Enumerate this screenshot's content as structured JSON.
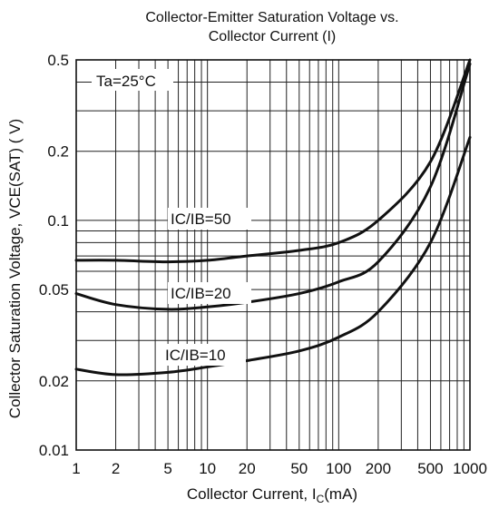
{
  "chart_data": {
    "type": "line",
    "title": "Collector-Emitter Saturation Voltage vs.",
    "subtitle": "Collector Current (I)",
    "xlabel": {
      "text": "Collector Current, I",
      "sub": "C",
      "unit": "(mA)"
    },
    "ylabel": "Collector  Saturation Voltage, VCE(SAT) ( V)",
    "xscale": "log",
    "yscale": "log",
    "xlim": [
      1,
      1000
    ],
    "ylim": [
      0.01,
      0.5
    ],
    "x_ticks": [
      {
        "value": 1,
        "label": "1"
      },
      {
        "value": 2,
        "label": "2"
      },
      {
        "value": 5,
        "label": "5"
      },
      {
        "value": 10,
        "label": "10"
      },
      {
        "value": 20,
        "label": "20"
      },
      {
        "value": 50,
        "label": "50"
      },
      {
        "value": 100,
        "label": "100"
      },
      {
        "value": 200,
        "label": "200"
      },
      {
        "value": 500,
        "label": "500"
      },
      {
        "value": 1000,
        "label": "1000"
      }
    ],
    "y_ticks": [
      {
        "value": 0.01,
        "label": "0.01"
      },
      {
        "value": 0.02,
        "label": "0.02"
      },
      {
        "value": 0.05,
        "label": "0.05"
      },
      {
        "value": 0.1,
        "label": "0.1"
      },
      {
        "value": 0.2,
        "label": "0.2"
      },
      {
        "value": 0.5,
        "label": "0.5"
      }
    ],
    "grid": true,
    "condition_label": "Ta=25°C",
    "series": [
      {
        "name": "IC/IB=50",
        "x": [
          1,
          2,
          5,
          10,
          20,
          50,
          100,
          200,
          500,
          1000
        ],
        "y": [
          0.067,
          0.067,
          0.066,
          0.067,
          0.07,
          0.074,
          0.08,
          0.1,
          0.18,
          0.5
        ]
      },
      {
        "name": "IC/IB=20",
        "x": [
          1,
          2,
          5,
          10,
          20,
          50,
          100,
          200,
          500,
          1000
        ],
        "y": [
          0.048,
          0.043,
          0.041,
          0.042,
          0.044,
          0.048,
          0.054,
          0.066,
          0.14,
          0.48
        ]
      },
      {
        "name": "IC/IB=10",
        "x": [
          1,
          2,
          5,
          10,
          20,
          50,
          100,
          200,
          500,
          1000
        ],
        "y": [
          0.0225,
          0.0213,
          0.0218,
          0.023,
          0.0245,
          0.027,
          0.031,
          0.04,
          0.08,
          0.23
        ]
      }
    ]
  }
}
